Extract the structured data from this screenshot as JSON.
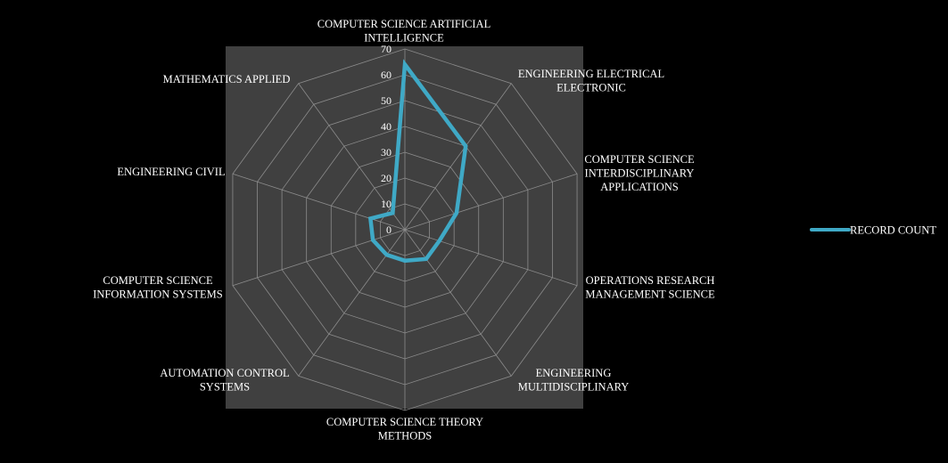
{
  "colors": {
    "background": "#000000",
    "plot_area": "#404040",
    "grid": "#8c8c8c",
    "text": "#ffffff",
    "series": "#3fa9c6"
  },
  "chart_data": {
    "type": "radar",
    "categories": [
      [
        "COMPUTER SCIENCE ARTIFICIAL",
        "INTELLIGENCE"
      ],
      [
        "ENGINEERING ELECTRICAL",
        "ELECTRONIC"
      ],
      [
        "COMPUTER SCIENCE",
        "INTERDISCIPLINARY",
        "APPLICATIONS"
      ],
      [
        "OPERATIONS RESEARCH",
        "MANAGEMENT SCIENCE"
      ],
      [
        "ENGINEERING",
        "MULTIDISCIPLINARY"
      ],
      [
        "COMPUTER SCIENCE THEORY",
        "METHODS"
      ],
      [
        "AUTOMATION CONTROL",
        "SYSTEMS"
      ],
      [
        "COMPUTER SCIENCE",
        "INFORMATION SYSTEMS"
      ],
      [
        "ENGINEERING CIVIL"
      ],
      [
        "MATHEMATICS APPLIED"
      ]
    ],
    "series": [
      {
        "name": "RECORD COUNT",
        "values": [
          64,
          40,
          21,
          14,
          14,
          12,
          12,
          13,
          14,
          8
        ]
      }
    ],
    "rlim": [
      0,
      70
    ],
    "ticks": [
      "0",
      "10",
      "20",
      "30",
      "40",
      "50",
      "60",
      "70"
    ],
    "grid": true,
    "legend_position": "right"
  }
}
